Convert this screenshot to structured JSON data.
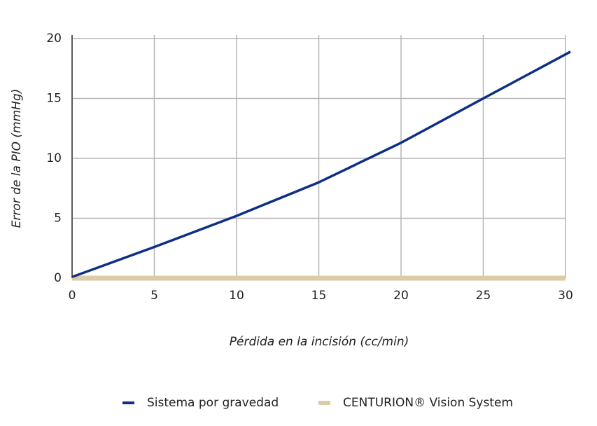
{
  "chart_data": {
    "type": "line",
    "x_label": "Pérdida en la incisión (cc/min)",
    "y_label": "Error de la PIO (mmHg)",
    "xlim": [
      0,
      30
    ],
    "xticks": [
      0,
      5,
      10,
      15,
      20,
      25,
      30
    ],
    "ylim": [
      0,
      20
    ],
    "yticks": [
      0,
      5,
      10,
      15,
      20
    ],
    "grid": true,
    "series": [
      {
        "name": "Sistema por gravedad",
        "color": "#0e2f87",
        "x": [
          0,
          5,
          10,
          15,
          20,
          25,
          30.3
        ],
        "values": [
          0.1,
          2.6,
          5.2,
          8.0,
          11.3,
          15.0,
          18.9
        ]
      },
      {
        "name": "CENTURION® Vision System",
        "color": "#dccba6",
        "x": [
          0,
          30
        ],
        "values": [
          0,
          0
        ]
      }
    ]
  }
}
